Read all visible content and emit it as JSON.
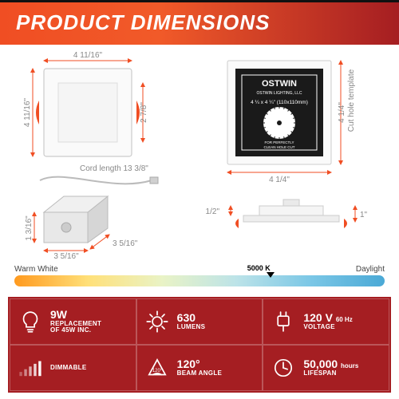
{
  "header": {
    "title": "PRODUCT DIMENSIONS"
  },
  "accent_color": "#f04e23",
  "dark_accent": "#a51e22",
  "diagrams": {
    "front": {
      "width": "4 11/16\"",
      "height_outer": "4 11/16\"",
      "height_inner": "2 7/8\""
    },
    "cord": {
      "label": "Cord length",
      "value": "13 3/8\""
    },
    "jbox": {
      "height": "1 3/16\"",
      "depth": "3 5/16\"",
      "width": "3 5/16\""
    },
    "template": {
      "brand": "OSTWIN",
      "sub": "OSTWIN LIGHTING, LLC",
      "size": "4 ¼ x 4 ¼\" (110x110mm)",
      "note1": "FOR PERFECTLY",
      "note2": "CLEAN HOLE CUT",
      "cut_label": "Cut hole template",
      "dim_w": "4 1/4\"",
      "dim_h": "4 1/4\""
    },
    "side": {
      "depth": "1/2\"",
      "height": "1\""
    }
  },
  "temp": {
    "left": "Warm White",
    "right": "Daylight",
    "value": "5000 K",
    "value_pos_pct": 66
  },
  "specs": [
    {
      "icon": "bulb",
      "big": "9W",
      "small": "REPLACEMENT\nOF 45W INC."
    },
    {
      "icon": "sun",
      "big": "630",
      "small": "LUMENS"
    },
    {
      "icon": "plug",
      "big": "120 V",
      "unit": "60 Hz",
      "small": "VOLTAGE"
    },
    {
      "icon": "dim",
      "big": "",
      "small": "DIMMABLE"
    },
    {
      "icon": "angle",
      "big": "120°",
      "small": "BEAM ANGLE"
    },
    {
      "icon": "clock",
      "big": "50,000",
      "unit": "hours",
      "small": "LIFESPAN"
    }
  ]
}
